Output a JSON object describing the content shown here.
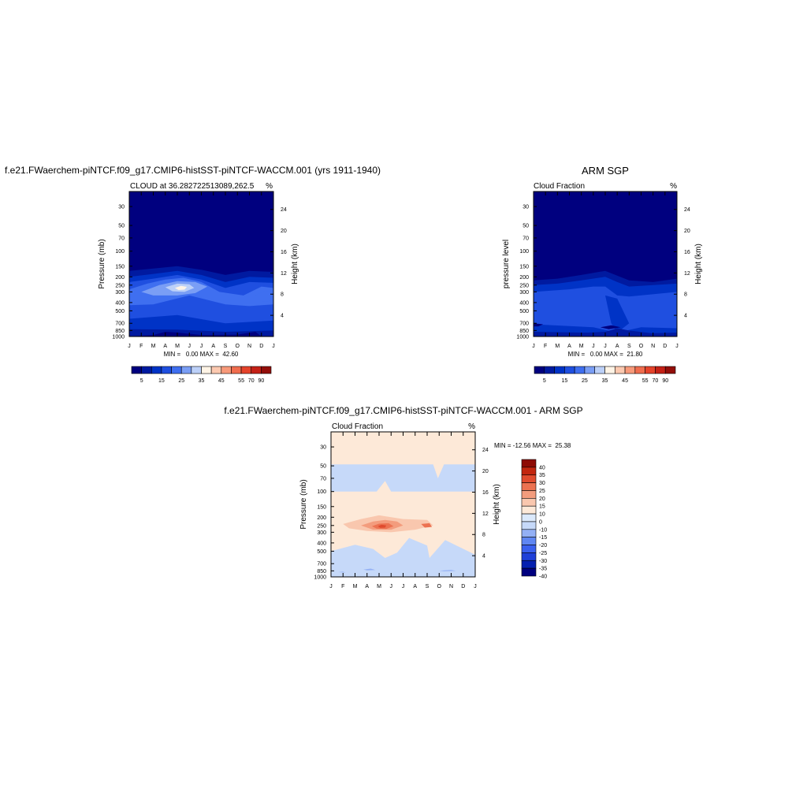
{
  "colors": {
    "cloud_scale": [
      "#00007f",
      "#001aa0",
      "#0033c6",
      "#1f4fe0",
      "#3f6ff0",
      "#7a9ef5",
      "#bcd0f8",
      "#fff4e6",
      "#fcc9b0",
      "#f89a7a",
      "#f06d4e",
      "#e5432b",
      "#c42116",
      "#930e0a"
    ],
    "diff_scale": [
      "#00007f",
      "#0520b0",
      "#1f40d8",
      "#3a60ee",
      "#5f86f2",
      "#93b0f5",
      "#c6d9f9",
      "#dbe9fb",
      "#fde9d8",
      "#f9c7ae",
      "#f39c7d",
      "#ec7251",
      "#e04b2e",
      "#c2260f",
      "#8e0b05"
    ]
  },
  "figure_titles": {
    "left": "f.e21.FWaerchem-piNTCF.f09_g17.CMIP6-histSST-piNTCF-WACCM.001 (yrs 1911-1940)",
    "right": "ARM SGP",
    "diff": "f.e21.FWaerchem-piNTCF.f09_g17.CMIP6-histSST-piNTCF-WACCM.001 - ARM SGP"
  },
  "chart_data": [
    {
      "id": "model",
      "type": "heatmap",
      "subtitle_left": "CLOUD at 36.282722513089,262.5",
      "subtitle_right": "%",
      "ylabel_left": "Pressure (mb)",
      "ylabel_right": "Height (km)",
      "x_ticks": [
        "J",
        "F",
        "M",
        "A",
        "M",
        "J",
        "J",
        "A",
        "S",
        "O",
        "N",
        "D",
        "J"
      ],
      "y_ticks": [
        "30",
        "50",
        "70",
        "100",
        "150",
        "200",
        "250",
        "300",
        "400",
        "500",
        "700",
        "850",
        "1000"
      ],
      "y_ticks_right": [
        "24",
        "20",
        "16",
        "12",
        "8",
        "4"
      ],
      "stats": "MIN =   0.00 MAX =  42.60",
      "colorbar_labels": [
        "5",
        "15",
        "25",
        "35",
        "45",
        "55",
        "70",
        "90"
      ],
      "min": 0.0,
      "max": 42.6,
      "peak": {
        "month": "May",
        "pressure_mb": 250,
        "value": 42.6
      }
    },
    {
      "id": "obs",
      "type": "heatmap",
      "subtitle_left": "Cloud Fraction",
      "subtitle_right": "%",
      "ylabel_left": "pressure level",
      "ylabel_right": "Height (km)",
      "x_ticks": [
        "J",
        "F",
        "M",
        "A",
        "M",
        "J",
        "J",
        "A",
        "S",
        "O",
        "N",
        "D",
        "J"
      ],
      "y_ticks": [
        "30",
        "50",
        "70",
        "100",
        "150",
        "200",
        "250",
        "300",
        "400",
        "500",
        "700",
        "850",
        "1000"
      ],
      "y_ticks_right": [
        "24",
        "20",
        "16",
        "12",
        "8",
        "4"
      ],
      "stats": "MIN =   0.00 MAX =  21.80",
      "colorbar_labels": [
        "5",
        "15",
        "25",
        "35",
        "45",
        "55",
        "70",
        "90"
      ],
      "min": 0.0,
      "max": 21.8
    },
    {
      "id": "diff",
      "type": "heatmap",
      "subtitle_left": "Cloud Fraction",
      "subtitle_right": "%",
      "ylabel_left": "Pressure (mb)",
      "ylabel_right": "Height (km)",
      "x_ticks": [
        "J",
        "F",
        "M",
        "A",
        "M",
        "J",
        "J",
        "A",
        "S",
        "O",
        "N",
        "D",
        "J"
      ],
      "y_ticks": [
        "30",
        "50",
        "70",
        "100",
        "150",
        "200",
        "250",
        "300",
        "400",
        "500",
        "700",
        "850",
        "1000"
      ],
      "y_ticks_right": [
        "24",
        "20",
        "16",
        "12",
        "8",
        "4"
      ],
      "stats": "MIN = -12.56 MAX =  25.38",
      "colorbar_labels": [
        "40",
        "35",
        "30",
        "25",
        "20",
        "15",
        "10",
        "0",
        "-10",
        "-15",
        "-20",
        "-25",
        "-30",
        "-35",
        "-40"
      ],
      "min": -12.56,
      "max": 25.38,
      "peak": {
        "month": "May",
        "pressure_mb": 250,
        "value": 25.38
      }
    }
  ]
}
